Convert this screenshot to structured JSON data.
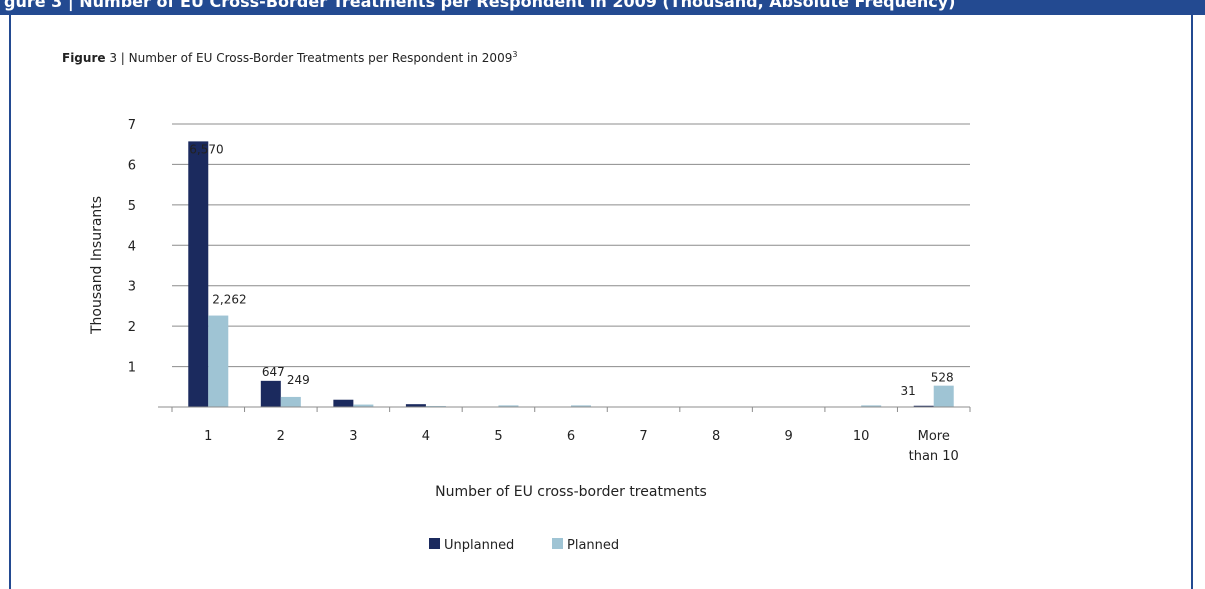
{
  "header": {
    "top_text": "gure 3 | Number of EU Cross-Border Treatments per Respondent in 2009 (Thousand, Absolute Frequency)"
  },
  "caption": {
    "label": "Figure",
    "text": " 3 | Number of EU Cross-Border Treatments per Respondent in 2009",
    "footnote": "3"
  },
  "colors": {
    "unplanned": "#1b2a5e",
    "planned": "#9fc4d4",
    "grid": "#8c8c8c",
    "frame": "#234a91"
  },
  "chart_data": {
    "type": "bar",
    "title": "",
    "xlabel": "Number of EU cross-border treatments",
    "ylabel": "Thousand  Insurants",
    "ylim": [
      0,
      7
    ],
    "yticks": [
      1,
      2,
      3,
      4,
      5,
      6,
      7
    ],
    "grid": true,
    "legend_position": "bottom",
    "categories": [
      "1",
      "2",
      "3",
      "4",
      "5",
      "6",
      "7",
      "8",
      "9",
      "10",
      "More than 10"
    ],
    "series": [
      {
        "name": "Unplanned",
        "values": [
          6.57,
          0.647,
          0.18,
          0.07,
          0.01,
          0.005,
          0.003,
          0.002,
          0.002,
          0.002,
          0.031
        ],
        "data_labels": [
          "6,570",
          "647",
          "",
          "",
          "",
          "",
          "",
          "",
          "",
          "",
          "31"
        ]
      },
      {
        "name": "Planned",
        "values": [
          2.262,
          0.249,
          0.06,
          0.025,
          0.04,
          0.04,
          0.005,
          0.005,
          0.005,
          0.04,
          0.528
        ],
        "data_labels": [
          "2,262",
          "249",
          "",
          "",
          "",
          "",
          "",
          "",
          "",
          "",
          "528"
        ]
      }
    ]
  }
}
